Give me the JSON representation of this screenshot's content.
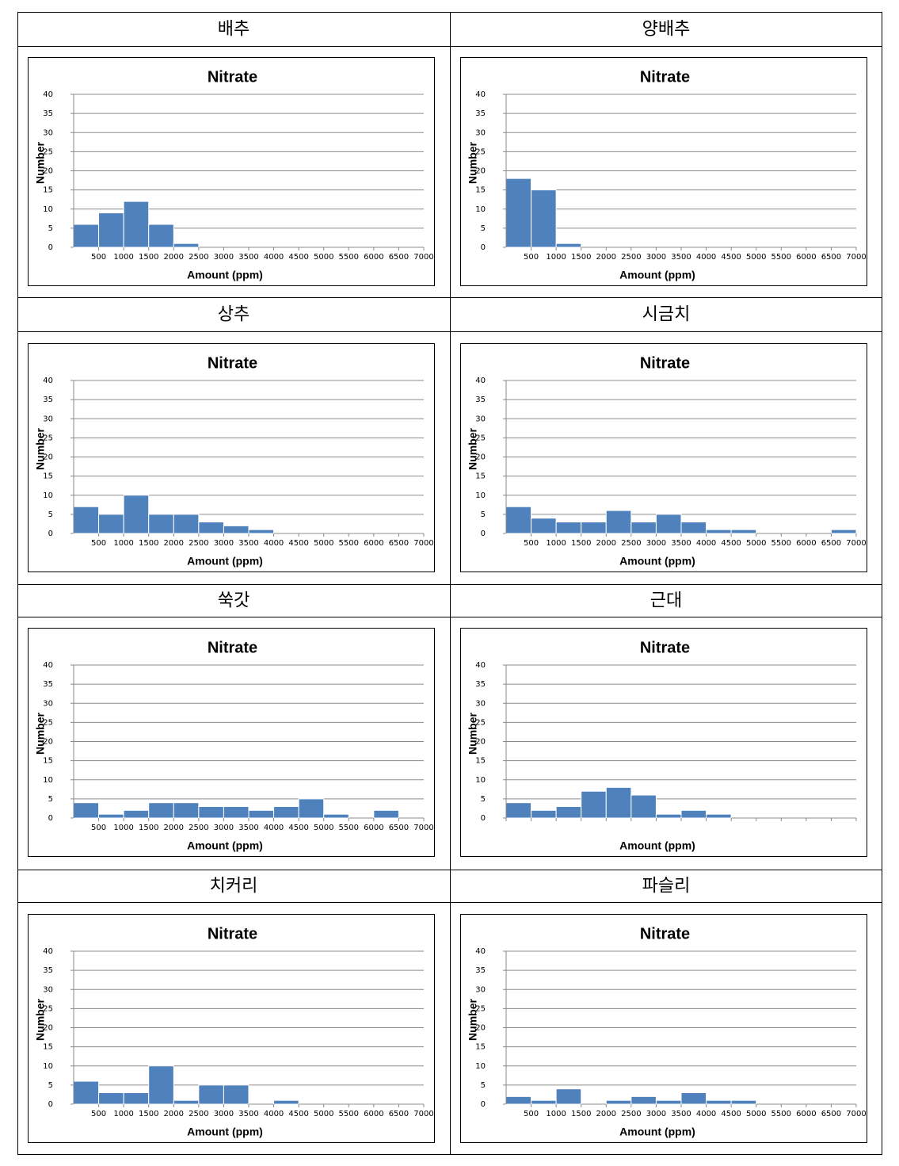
{
  "table": {
    "headers": [
      "배추",
      "양배추",
      "상추",
      "시금치",
      "쑥갓",
      "근대",
      "치커리",
      "파슬리"
    ]
  },
  "chart_data": [
    {
      "type": "histogram",
      "title": "Nitrate",
      "xlabel": "Amount (ppm)",
      "ylabel": "Number",
      "color": "#4f81bd",
      "grid": true,
      "bins": [
        0,
        500,
        1000,
        1500,
        2000,
        2500,
        3000,
        3500,
        4000,
        4500,
        5000,
        5500,
        6000,
        6500,
        7000
      ],
      "values": [
        6,
        9,
        12,
        6,
        1,
        0,
        0,
        0,
        0,
        0,
        0,
        0,
        0,
        0
      ],
      "xlim": [
        0,
        7000
      ],
      "ylim": [
        0,
        40
      ],
      "xticks": [
        500,
        1000,
        1500,
        2000,
        2500,
        3000,
        3500,
        4000,
        4500,
        5000,
        5500,
        6000,
        6500,
        7000
      ],
      "yticks": [
        0,
        5,
        10,
        15,
        20,
        25,
        30,
        35,
        40
      ]
    },
    {
      "type": "histogram",
      "title": "Nitrate",
      "xlabel": "Amount (ppm)",
      "ylabel": "Number",
      "color": "#4f81bd",
      "grid": true,
      "bins": [
        0,
        500,
        1000,
        1500,
        2000,
        2500,
        3000,
        3500,
        4000,
        4500,
        5000,
        5500,
        6000,
        6500,
        7000
      ],
      "values": [
        18,
        15,
        1,
        0,
        0,
        0,
        0,
        0,
        0,
        0,
        0,
        0,
        0,
        0
      ],
      "xlim": [
        0,
        7000
      ],
      "ylim": [
        0,
        40
      ],
      "xticks": [
        500,
        1000,
        1500,
        2000,
        2500,
        3000,
        3500,
        4000,
        4500,
        5000,
        5500,
        6000,
        6500,
        7000
      ],
      "yticks": [
        0,
        5,
        10,
        15,
        20,
        25,
        30,
        35,
        40
      ]
    },
    {
      "type": "histogram",
      "title": "Nitrate",
      "xlabel": "Amount (ppm)",
      "ylabel": "Number",
      "color": "#4f81bd",
      "grid": true,
      "bins": [
        0,
        500,
        1000,
        1500,
        2000,
        2500,
        3000,
        3500,
        4000,
        4500,
        5000,
        5500,
        6000,
        6500,
        7000
      ],
      "values": [
        7,
        5,
        10,
        5,
        5,
        3,
        2,
        1,
        0,
        0,
        0,
        0,
        0,
        0
      ],
      "xlim": [
        0,
        7000
      ],
      "ylim": [
        0,
        40
      ],
      "xticks": [
        500,
        1000,
        1500,
        2000,
        2500,
        3000,
        3500,
        4000,
        4500,
        5000,
        5500,
        6000,
        6500,
        7000
      ],
      "yticks": [
        0,
        5,
        10,
        15,
        20,
        25,
        30,
        35,
        40
      ]
    },
    {
      "type": "histogram",
      "title": "Nitrate",
      "xlabel": "Amount (ppm)",
      "ylabel": "Number",
      "color": "#4f81bd",
      "grid": true,
      "bins": [
        0,
        500,
        1000,
        1500,
        2000,
        2500,
        3000,
        3500,
        4000,
        4500,
        5000,
        5500,
        6000,
        6500,
        7000
      ],
      "values": [
        7,
        4,
        3,
        3,
        6,
        3,
        5,
        3,
        1,
        1,
        0,
        0,
        0,
        1
      ],
      "xlim": [
        0,
        7000
      ],
      "ylim": [
        0,
        40
      ],
      "xticks": [
        500,
        1000,
        1500,
        2000,
        2500,
        3000,
        3500,
        4000,
        4500,
        5000,
        5500,
        6000,
        6500,
        7000
      ],
      "yticks": [
        0,
        5,
        10,
        15,
        20,
        25,
        30,
        35,
        40
      ]
    },
    {
      "type": "histogram",
      "title": "Nitrate",
      "xlabel": "Amount (ppm)",
      "ylabel": "Number",
      "color": "#4f81bd",
      "grid": true,
      "bins": [
        0,
        500,
        1000,
        1500,
        2000,
        2500,
        3000,
        3500,
        4000,
        4500,
        5000,
        5500,
        6000,
        6500,
        7000
      ],
      "values": [
        4,
        1,
        2,
        4,
        4,
        3,
        3,
        2,
        3,
        5,
        1,
        0,
        2,
        0
      ],
      "xlim": [
        0,
        7000
      ],
      "ylim": [
        0,
        40
      ],
      "xticks": [
        500,
        1000,
        1500,
        2000,
        2500,
        3000,
        3500,
        4000,
        4500,
        5000,
        5500,
        6000,
        6500,
        7000
      ],
      "yticks": [
        0,
        5,
        10,
        15,
        20,
        25,
        30,
        35,
        40
      ]
    },
    {
      "type": "histogram",
      "title": "Nitrate",
      "xlabel": "Amount (ppm)",
      "ylabel": "Number",
      "color": "#4f81bd",
      "grid": true,
      "bins": [
        0,
        500,
        1000,
        1500,
        2000,
        2500,
        3000,
        3500,
        4000,
        4500,
        5000,
        5500,
        6000,
        6500,
        7000
      ],
      "values": [
        4,
        2,
        3,
        7,
        8,
        6,
        1,
        2,
        1,
        0,
        0,
        0,
        0,
        0
      ],
      "xlim": [
        0,
        7000
      ],
      "ylim": [
        0,
        40
      ],
      "yticks": [
        0,
        5,
        10,
        15,
        20,
        25,
        30,
        35,
        40
      ]
    },
    {
      "type": "histogram",
      "title": "Nitrate",
      "xlabel": "Amount (ppm)",
      "ylabel": "Number",
      "color": "#4f81bd",
      "grid": true,
      "bins": [
        0,
        500,
        1000,
        1500,
        2000,
        2500,
        3000,
        3500,
        4000,
        4500,
        5000,
        5500,
        6000,
        6500,
        7000
      ],
      "values": [
        6,
        3,
        3,
        10,
        1,
        5,
        5,
        0,
        1,
        0,
        0,
        0,
        0,
        0
      ],
      "xlim": [
        0,
        7000
      ],
      "ylim": [
        0,
        40
      ],
      "xticks": [
        500,
        1000,
        1500,
        2000,
        2500,
        3000,
        3500,
        4000,
        4500,
        5000,
        5500,
        6000,
        6500,
        7000
      ],
      "yticks": [
        0,
        5,
        10,
        15,
        20,
        25,
        30,
        35,
        40
      ]
    },
    {
      "type": "histogram",
      "title": "Nitrate",
      "xlabel": "Amount (ppm)",
      "ylabel": "Number",
      "color": "#4f81bd",
      "grid": true,
      "bins": [
        0,
        500,
        1000,
        1500,
        2000,
        2500,
        3000,
        3500,
        4000,
        4500,
        5000,
        5500,
        6000,
        6500,
        7000
      ],
      "values": [
        2,
        1,
        4,
        0,
        1,
        2,
        1,
        3,
        1,
        1,
        0,
        0,
        0,
        0
      ],
      "xlim": [
        0,
        7000
      ],
      "ylim": [
        0,
        40
      ],
      "xticks": [
        500,
        1000,
        1500,
        2000,
        2500,
        3000,
        3500,
        4000,
        4500,
        5000,
        5500,
        6000,
        6500,
        7000
      ],
      "yticks": [
        0,
        5,
        10,
        15,
        20,
        25,
        30,
        35,
        40
      ]
    }
  ]
}
